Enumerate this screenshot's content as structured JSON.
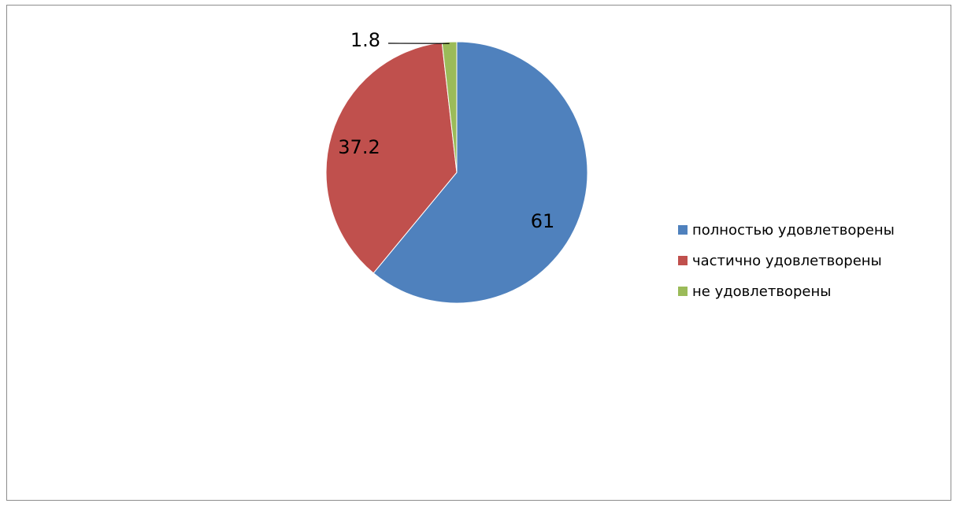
{
  "chart_data": {
    "type": "pie",
    "categories": [
      "полностью удовлетворены",
      "частично удовлетворены",
      "не удовлетворены"
    ],
    "values": [
      61,
      37.2,
      1.8
    ],
    "data_labels": [
      "61",
      "37.2",
      "1.8"
    ],
    "colors": [
      "#4f81bd",
      "#c0504d",
      "#9bbb59"
    ],
    "legend_position": "right",
    "start_angle": "12 o'clock, clockwise"
  }
}
